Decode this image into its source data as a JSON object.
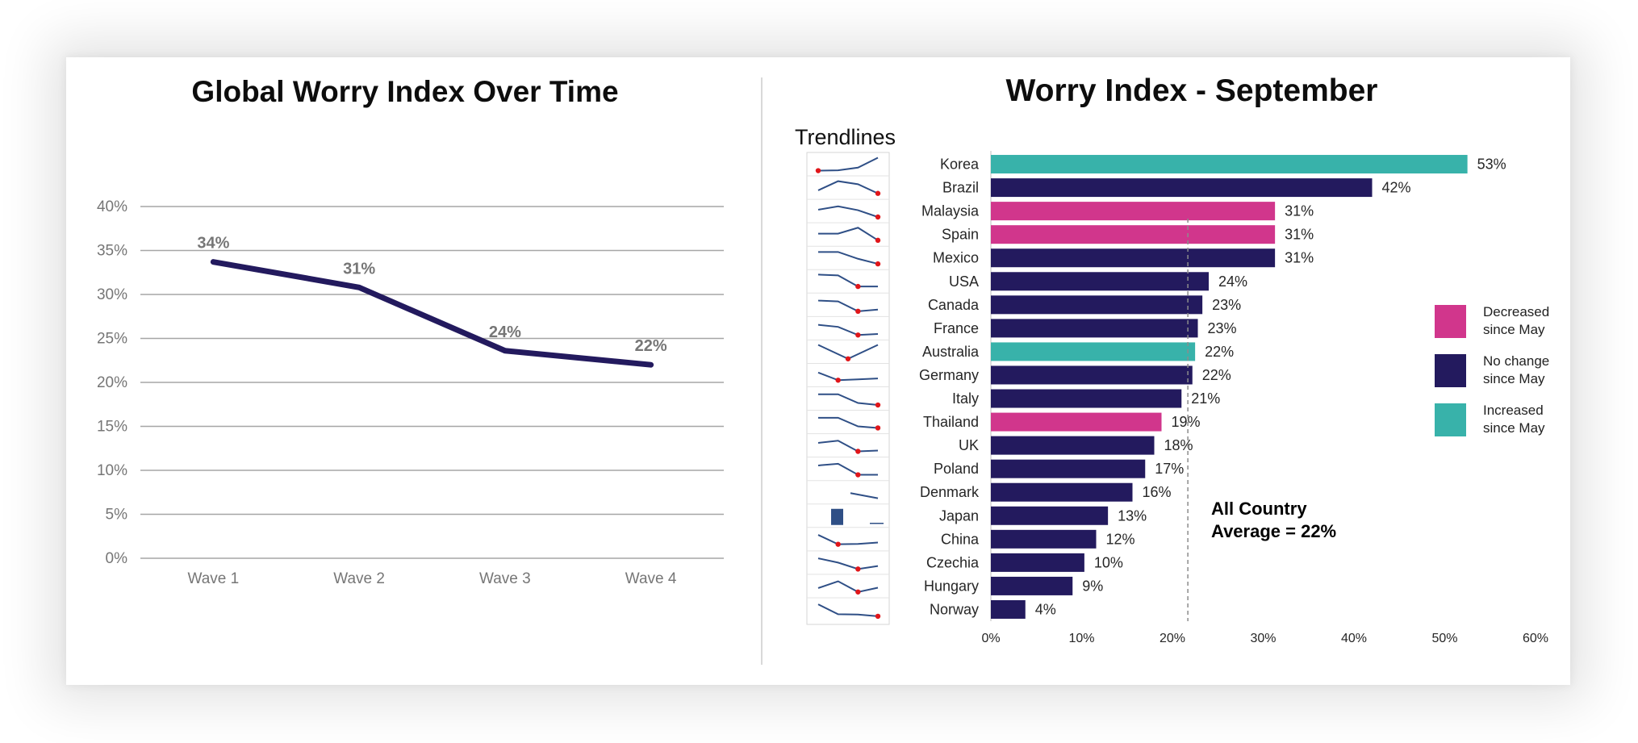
{
  "left_chart_title": "Global Worry Index Over Time",
  "right_chart_title": "Worry Index - September",
  "trendlines_label": "Trendlines",
  "annotation": {
    "line1": "All Country",
    "line2": "Average = 22%"
  },
  "legend": [
    {
      "line1": "Decreased",
      "line2": "since May",
      "color": "#d1368c"
    },
    {
      "line1": "No change",
      "line2": "since May",
      "color": "#231a5e"
    },
    {
      "line1": "Increased",
      "line2": "since May",
      "color": "#38b2aa"
    }
  ],
  "colors": {
    "line": "#231a5e",
    "decreased": "#d1368c",
    "no_change": "#231a5e",
    "increased": "#38b2aa",
    "sparkline": "#2f4f86",
    "sparkline_marker": "#e0161a",
    "gridline": "#a6a6a6",
    "axis_text": "#767676"
  },
  "chart_data": [
    {
      "type": "line",
      "title": "Global Worry Index Over Time",
      "categories": [
        "Wave 1",
        "Wave 2",
        "Wave 3",
        "Wave 4"
      ],
      "values": [
        33.7,
        30.8,
        23.6,
        22.0
      ],
      "data_labels": [
        "34%",
        "31%",
        "24%",
        "22%"
      ],
      "ylim": [
        0,
        40
      ],
      "yticks": [
        "0%",
        "5%",
        "10%",
        "15%",
        "20%",
        "25%",
        "30%",
        "35%",
        "40%"
      ],
      "grid": true,
      "xlabel": "",
      "ylabel": ""
    },
    {
      "type": "bar",
      "orientation": "horizontal",
      "title": "Worry Index - September",
      "categories": [
        "Korea",
        "Brazil",
        "Malaysia",
        "Spain",
        "Mexico",
        "USA",
        "Canada",
        "France",
        "Australia",
        "Germany",
        "Italy",
        "Thailand",
        "UK",
        "Poland",
        "Denmark",
        "Japan",
        "China",
        "Czechia",
        "Hungary",
        "Norway"
      ],
      "values": [
        52.5,
        42,
        31.3,
        31.3,
        31.3,
        24,
        23.3,
        22.8,
        22.5,
        22.2,
        21,
        18.8,
        18,
        17,
        15.6,
        12.9,
        11.6,
        10.3,
        9,
        3.8
      ],
      "data_labels": [
        "53%",
        "42%",
        "31%",
        "31%",
        "31%",
        "24%",
        "23%",
        "23%",
        "22%",
        "22%",
        "21%",
        "19%",
        "18%",
        "17%",
        "16%",
        "13%",
        "12%",
        "10%",
        "9%",
        "4%"
      ],
      "status": [
        "increased",
        "no_change",
        "decreased",
        "decreased",
        "no_change",
        "no_change",
        "no_change",
        "no_change",
        "increased",
        "no_change",
        "no_change",
        "decreased",
        "no_change",
        "no_change",
        "no_change",
        "no_change",
        "no_change",
        "no_change",
        "no_change",
        "no_change"
      ],
      "average": 21.7,
      "xlim": [
        0,
        60
      ],
      "xticks": [
        "0%",
        "10%",
        "20%",
        "30%",
        "40%",
        "50%",
        "60%"
      ],
      "sparklines": [
        [
          0.88,
          0.86,
          0.7,
          0.12
        ],
        [
          0.66,
          0.12,
          0.3,
          0.84
        ],
        [
          0.42,
          0.22,
          0.45,
          0.85
        ],
        [
          0.45,
          0.45,
          0.1,
          0.84
        ],
        [
          0.15,
          0.15,
          0.55,
          0.85
        ],
        [
          0.1,
          0.15,
          0.8,
          0.8
        ],
        [
          0.25,
          0.3,
          0.88,
          0.78
        ],
        [
          0.3,
          0.42,
          0.9,
          0.84
        ],
        [
          0.1,
          0.92,
          0.1
        ],
        [
          0.35,
          0.8,
          0.75,
          0.7
        ],
        [
          0.25,
          0.25,
          0.76,
          0.88
        ],
        [
          0.25,
          0.25,
          0.76,
          0.85
        ],
        [
          0.35,
          0.22,
          0.85,
          0.8
        ],
        [
          0.3,
          0.2,
          0.85,
          0.85
        ],
        [
          0.55,
          0.85
        ],
        [
          0.18,
          0.12,
          0.82
        ],
        [
          0.25,
          0.8,
          0.78,
          0.7
        ],
        [
          0.25,
          0.5,
          0.88,
          0.7
        ],
        [
          0.62,
          0.22,
          0.85,
          0.6
        ],
        [
          0.2,
          0.78,
          0.8,
          0.9
        ]
      ]
    }
  ]
}
